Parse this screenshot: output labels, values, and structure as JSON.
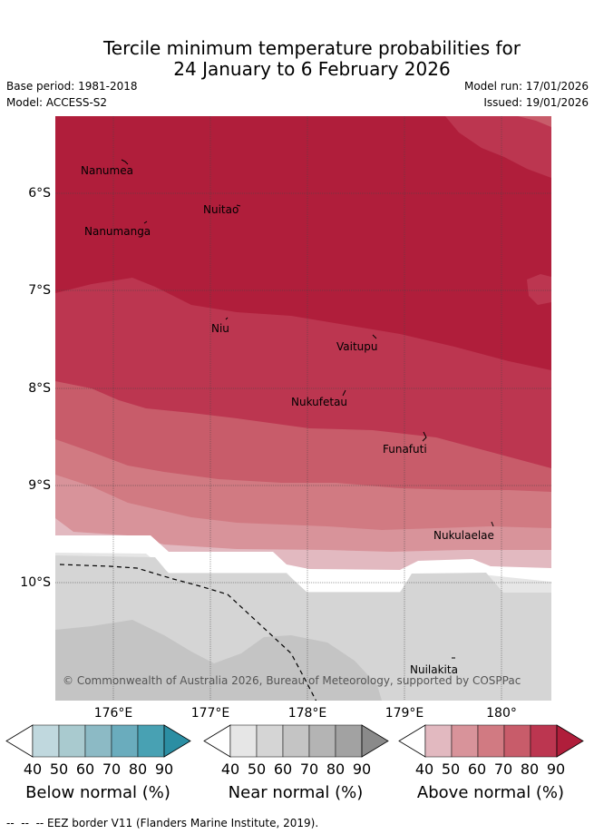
{
  "title": {
    "line1": "Tercile minimum temperature probabilities for",
    "line2": "24 January to 6 February 2026"
  },
  "meta": {
    "base_period": "Base period: 1981-2018",
    "model": "Model: ACCESS-S2",
    "model_run": "Model run: 17/01/2026",
    "issued": "Issued: 19/01/2026"
  },
  "map": {
    "lat_labels": [
      "6°S",
      "7°S",
      "8°S",
      "9°S",
      "10°S"
    ],
    "lon_labels": [
      "176°E",
      "177°E",
      "178°E",
      "179°E",
      "180°"
    ],
    "places": [
      "Nanumea",
      "Nuitao",
      "Nanumanga",
      "Niu",
      "Vaitupu",
      "Nukufetau",
      "Funafuti",
      "Nukulaelae",
      "Nuilakita"
    ],
    "copyright": "© Commonwealth of Australia 2026, Bureau of Meteorology, supported by COSPPac"
  },
  "colorbars": [
    {
      "title": "Below normal (%)",
      "ticks": [
        "40",
        "50",
        "60",
        "70",
        "80",
        "90"
      ],
      "colors": [
        "#ffffff",
        "#c0d8de",
        "#a9cacf",
        "#8cbac5",
        "#6aacbd",
        "#48a1b3",
        "#2b8ea3"
      ]
    },
    {
      "title": "Near normal (%)",
      "ticks": [
        "40",
        "50",
        "60",
        "70",
        "80",
        "90"
      ],
      "colors": [
        "#ffffff",
        "#e6e6e6",
        "#d5d5d5",
        "#c4c4c4",
        "#b4b4b4",
        "#a2a2a2",
        "#8a8a8a"
      ]
    },
    {
      "title": "Above normal (%)",
      "ticks": [
        "40",
        "50",
        "60",
        "70",
        "80",
        "90"
      ],
      "colors": [
        "#ffffff",
        "#e2b9c0",
        "#d8939a",
        "#d17a82",
        "#c85c6a",
        "#bc3650",
        "#b01e3b"
      ]
    }
  ],
  "eez_legend": "--  --  -- EEZ border V11 (Flanders Marine Institute, 2019)."
}
